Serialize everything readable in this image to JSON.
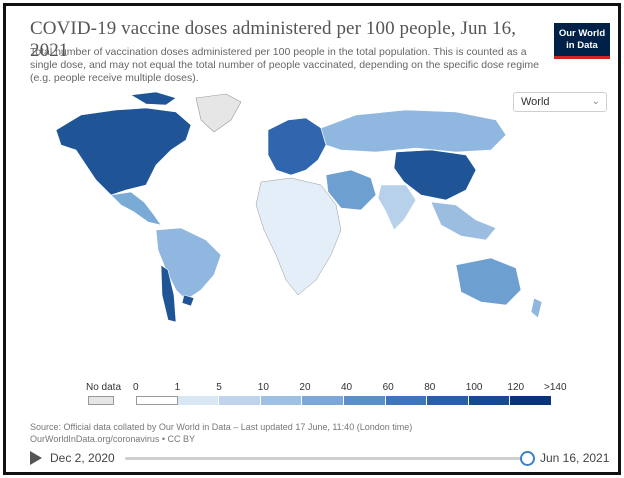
{
  "title": "COVID-19 vaccine doses administered per 100 people, Jun 16, 2021",
  "subtitle": "Total number of vaccination doses administered per 100 people in the total population. This is counted as a single dose, and may not equal the total number of people vaccinated, depending on the specific dose regime (e.g. people receive multiple doses).",
  "logo": {
    "line1": "Our World",
    "line2": "in Data"
  },
  "region_select": {
    "value": "World"
  },
  "legend": {
    "no_data_label": "No data",
    "no_data_color": "#e6e6e6",
    "labels": [
      "0",
      "1",
      "5",
      "10",
      "20",
      "40",
      "60",
      "80",
      "100",
      "120",
      ">140"
    ],
    "colors": [
      "#ffffff",
      "#eef3fa",
      "#d9e6f4",
      "#bfd4ec",
      "#9ec0e2",
      "#7ba8d6",
      "#5a8fc8",
      "#3f76b8",
      "#2a5fa4",
      "#174a8e",
      "#0a3478"
    ]
  },
  "source": {
    "line1": "Source: Official data collated by Our World in Data – Last updated 17 June, 11:40 (London time)",
    "line2": "OurWorldInData.org/coronavirus • CC BY"
  },
  "timeline": {
    "start": "Dec 2, 2020",
    "end": "Jun 16, 2021"
  },
  "map_regions": [
    {
      "name": "North America (Canada/USA)",
      "color": "#1f5597"
    },
    {
      "name": "Mexico / Central America",
      "color": "#7aaad6"
    },
    {
      "name": "South America north",
      "color": "#8fb7df"
    },
    {
      "name": "Chile / Uruguay",
      "color": "#1f5597"
    },
    {
      "name": "Greenland",
      "color": "#e6e6e6"
    },
    {
      "name": "Europe",
      "color": "#2f66ad"
    },
    {
      "name": "Russia / Central Asia",
      "color": "#8fb7df"
    },
    {
      "name": "China / Mongolia",
      "color": "#1f5597"
    },
    {
      "name": "Middle East",
      "color": "#6e9fd1"
    },
    {
      "name": "Africa",
      "color": "#e4eef8"
    },
    {
      "name": "India",
      "color": "#b8d1ea"
    },
    {
      "name": "Southeast Asia",
      "color": "#9bbde0"
    },
    {
      "name": "Australia",
      "color": "#6e9fd1"
    },
    {
      "name": "New Zealand",
      "color": "#8fb7df"
    }
  ]
}
